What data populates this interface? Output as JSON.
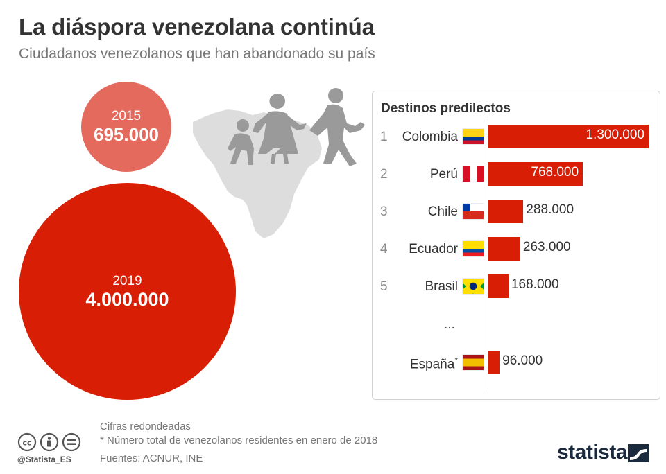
{
  "title": "La diáspora venezolana continúa",
  "subtitle": "Ciudadanos venezolanos que han abandonado su país",
  "bubbles": [
    {
      "year": "2015",
      "value_label": "695.000",
      "value": 695000,
      "color": "#e46a5e"
    },
    {
      "year": "2019",
      "value_label": "4.000.000",
      "value": 4000000,
      "color": "#d81e05"
    }
  ],
  "panel": {
    "title": "Destinos predilectos",
    "ellipsis": "..."
  },
  "chart_data": {
    "type": "bar",
    "title": "Destinos predilectos",
    "categories": [
      "Colombia",
      "Perú",
      "Chile",
      "Ecuador",
      "Brasil",
      "España"
    ],
    "ranks": [
      "1",
      "2",
      "3",
      "4",
      "5",
      ""
    ],
    "values": [
      1300000,
      768000,
      288000,
      263000,
      168000,
      96000
    ],
    "value_labels": [
      "1.300.000",
      "768.000",
      "288.000",
      "263.000",
      "168.000",
      "96.000"
    ],
    "footnote_markers": [
      "",
      "",
      "",
      "",
      "",
      "*"
    ],
    "flags": [
      "colombia-flag",
      "peru-flag",
      "chile-flag",
      "ecuador-flag",
      "brazil-flag",
      "spain-flag"
    ],
    "bar_color": "#d81e05",
    "xlim": [
      0,
      1300000
    ]
  },
  "footer": {
    "note1": "Cifras redondeadas",
    "note2": "* Número total de venezolanos residentes en enero de 2018",
    "sources": "Fuentes: ACNUR, INE",
    "handle": "@Statista_ES",
    "brand": "statista"
  },
  "icons": [
    "creative-commons-icon",
    "attribution-icon",
    "no-derivatives-icon",
    "family-walking-icon",
    "venezuela-map-icon",
    "statista-logo-icon"
  ]
}
